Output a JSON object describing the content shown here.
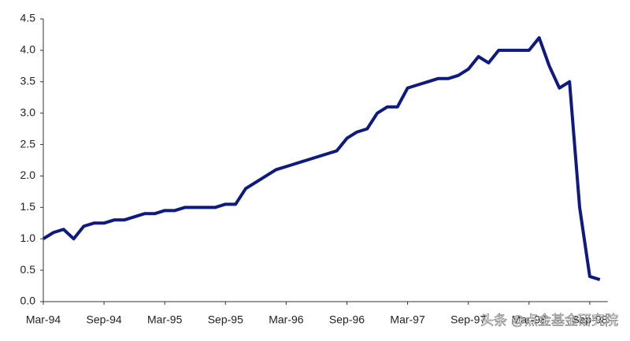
{
  "chart_data": {
    "type": "line",
    "categories": [
      "Mar-94",
      null,
      null,
      null,
      null,
      null,
      "Sep-94",
      null,
      null,
      null,
      null,
      null,
      "Mar-95",
      null,
      null,
      null,
      null,
      null,
      "Sep-95",
      null,
      null,
      null,
      null,
      null,
      "Mar-96",
      null,
      null,
      null,
      null,
      null,
      "Sep-96",
      null,
      null,
      null,
      null,
      null,
      "Mar-97",
      null,
      null,
      null,
      null,
      null,
      "Sep-97",
      null,
      null,
      null,
      null,
      null,
      "Mar-98",
      null,
      null,
      null,
      null,
      null,
      "Sep-98",
      null
    ],
    "values": [
      1.0,
      1.1,
      1.15,
      1.0,
      1.2,
      1.25,
      1.25,
      1.3,
      1.3,
      1.35,
      1.4,
      1.4,
      1.45,
      1.45,
      1.5,
      1.5,
      1.5,
      1.5,
      1.55,
      1.55,
      1.8,
      1.9,
      2.0,
      2.1,
      2.15,
      2.2,
      2.25,
      2.3,
      2.35,
      2.4,
      2.6,
      2.7,
      2.75,
      3.0,
      3.1,
      3.1,
      3.4,
      3.45,
      3.5,
      3.55,
      3.55,
      3.6,
      3.7,
      3.9,
      3.8,
      4.0,
      4.0,
      4.0,
      4.0,
      4.2,
      3.75,
      3.4,
      3.5,
      1.5,
      0.4,
      0.35
    ],
    "color": "#0f1a80",
    "ylim": [
      0,
      4.5
    ],
    "yticks": [
      {
        "value": 0,
        "label": "0.0"
      },
      0.5,
      {
        "value": 1,
        "label": "1.0"
      },
      1.5,
      {
        "value": 2,
        "label": "2.0"
      },
      2.5,
      {
        "value": 3,
        "label": "3.0"
      },
      3.5,
      {
        "value": 4,
        "label": "4.0"
      },
      4.5
    ],
    "watermark": "头条 @点金基金研究院"
  }
}
